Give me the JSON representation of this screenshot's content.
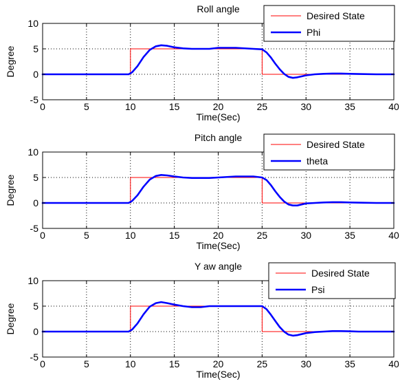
{
  "chart_data": [
    {
      "type": "line",
      "title": "Roll angle",
      "xlabel": "Time(Sec)",
      "ylabel": "Degree",
      "xlim": [
        0,
        40
      ],
      "ylim": [
        -5,
        10
      ],
      "xticks": [
        "0",
        "5",
        "10",
        "15",
        "20",
        "25",
        "30",
        "35",
        "40"
      ],
      "yticks": [
        "-5",
        "0",
        "5",
        "10"
      ],
      "grid": true,
      "legend_position": "top-right",
      "series": [
        {
          "name": "Desired State",
          "color": "#ff0000",
          "x": [
            0,
            10,
            10,
            25,
            25,
            40
          ],
          "values": [
            0,
            0,
            5,
            5,
            0,
            0
          ]
        },
        {
          "name": "Phi",
          "color": "#0000ff",
          "x": [
            0,
            9.8,
            10.2,
            10.8,
            11.5,
            12.2,
            12.9,
            13.5,
            14.2,
            15.0,
            16.0,
            17.0,
            18.0,
            19.0,
            20.0,
            22.0,
            24.0,
            25.0,
            25.5,
            26.0,
            26.5,
            27.0,
            27.5,
            28.0,
            28.5,
            29.0,
            29.5,
            30.0,
            31.0,
            32.0,
            33.0,
            34.0,
            35.0,
            36.0,
            38.0,
            40.0
          ],
          "values": [
            0,
            0,
            0.4,
            1.6,
            3.4,
            4.8,
            5.5,
            5.7,
            5.6,
            5.3,
            5.1,
            5.0,
            5.0,
            5.0,
            5.2,
            5.2,
            5.0,
            4.9,
            4.3,
            3.3,
            2.1,
            1.0,
            0.1,
            -0.5,
            -0.7,
            -0.6,
            -0.4,
            -0.2,
            0.0,
            0.1,
            0.15,
            0.15,
            0.1,
            0.05,
            0.0,
            0.0
          ]
        }
      ]
    },
    {
      "type": "line",
      "title": "Pitch angle",
      "xlabel": "Time(Sec)",
      "ylabel": "Degree",
      "xlim": [
        0,
        40
      ],
      "ylim": [
        -5,
        10
      ],
      "xticks": [
        "0",
        "5",
        "10",
        "15",
        "20",
        "25",
        "30",
        "35",
        "40"
      ],
      "yticks": [
        "-5",
        "0",
        "5",
        "10"
      ],
      "grid": true,
      "legend_position": "top-right",
      "series": [
        {
          "name": "Desired State",
          "color": "#ff0000",
          "x": [
            0,
            10,
            10,
            25,
            25,
            40
          ],
          "values": [
            0,
            0,
            5,
            5,
            0,
            0
          ]
        },
        {
          "name": "theta",
          "color": "#0000ff",
          "x": [
            0,
            9.8,
            10.2,
            10.8,
            11.5,
            12.2,
            12.9,
            13.5,
            14.2,
            15.0,
            16.0,
            17.0,
            18.0,
            19.0,
            20.0,
            22.0,
            24.0,
            25.0,
            25.5,
            26.0,
            26.5,
            27.0,
            27.5,
            28.0,
            28.5,
            29.0,
            29.5,
            30.0,
            31.0,
            32.0,
            33.0,
            34.0,
            35.0,
            36.0,
            38.0,
            40.0
          ],
          "values": [
            0,
            0,
            0.4,
            1.5,
            3.2,
            4.6,
            5.3,
            5.5,
            5.4,
            5.2,
            5.0,
            4.9,
            4.9,
            4.9,
            5.0,
            5.2,
            5.2,
            5.0,
            4.5,
            3.5,
            2.3,
            1.2,
            0.3,
            -0.3,
            -0.5,
            -0.5,
            -0.3,
            -0.1,
            0.0,
            0.1,
            0.15,
            0.15,
            0.1,
            0.05,
            0.0,
            0.0
          ]
        }
      ]
    },
    {
      "type": "line",
      "title": "Y aw angle",
      "xlabel": "Time(Sec)",
      "ylabel": "Degree",
      "xlim": [
        0,
        40
      ],
      "ylim": [
        -5,
        10
      ],
      "xticks": [
        "0",
        "5",
        "10",
        "15",
        "20",
        "25",
        "30",
        "35",
        "40"
      ],
      "yticks": [
        "-5",
        "0",
        "5",
        "10"
      ],
      "grid": true,
      "legend_position": "top-right",
      "series": [
        {
          "name": "Desired State",
          "color": "#ff0000",
          "x": [
            0,
            10,
            10,
            25,
            25,
            40
          ],
          "values": [
            0,
            0,
            5,
            5,
            0,
            0
          ]
        },
        {
          "name": "Psi",
          "color": "#0000ff",
          "x": [
            0,
            9.8,
            10.2,
            10.8,
            11.5,
            12.2,
            12.9,
            13.5,
            14.2,
            15.0,
            16.0,
            17.0,
            18.0,
            19.0,
            20.0,
            22.0,
            24.0,
            25.0,
            25.5,
            26.0,
            26.5,
            27.0,
            27.5,
            28.0,
            28.5,
            29.0,
            29.5,
            30.0,
            31.0,
            32.0,
            33.0,
            34.0,
            35.0,
            36.0,
            38.0,
            40.0
          ],
          "values": [
            0,
            0,
            0.4,
            1.6,
            3.4,
            4.9,
            5.6,
            5.8,
            5.6,
            5.3,
            5.0,
            4.8,
            4.8,
            5.0,
            5.0,
            5.0,
            5.0,
            5.0,
            4.4,
            3.3,
            2.1,
            0.9,
            0.0,
            -0.6,
            -0.8,
            -0.7,
            -0.5,
            -0.3,
            -0.1,
            0.0,
            0.1,
            0.1,
            0.05,
            0.0,
            0.0,
            0.0
          ]
        }
      ]
    }
  ]
}
